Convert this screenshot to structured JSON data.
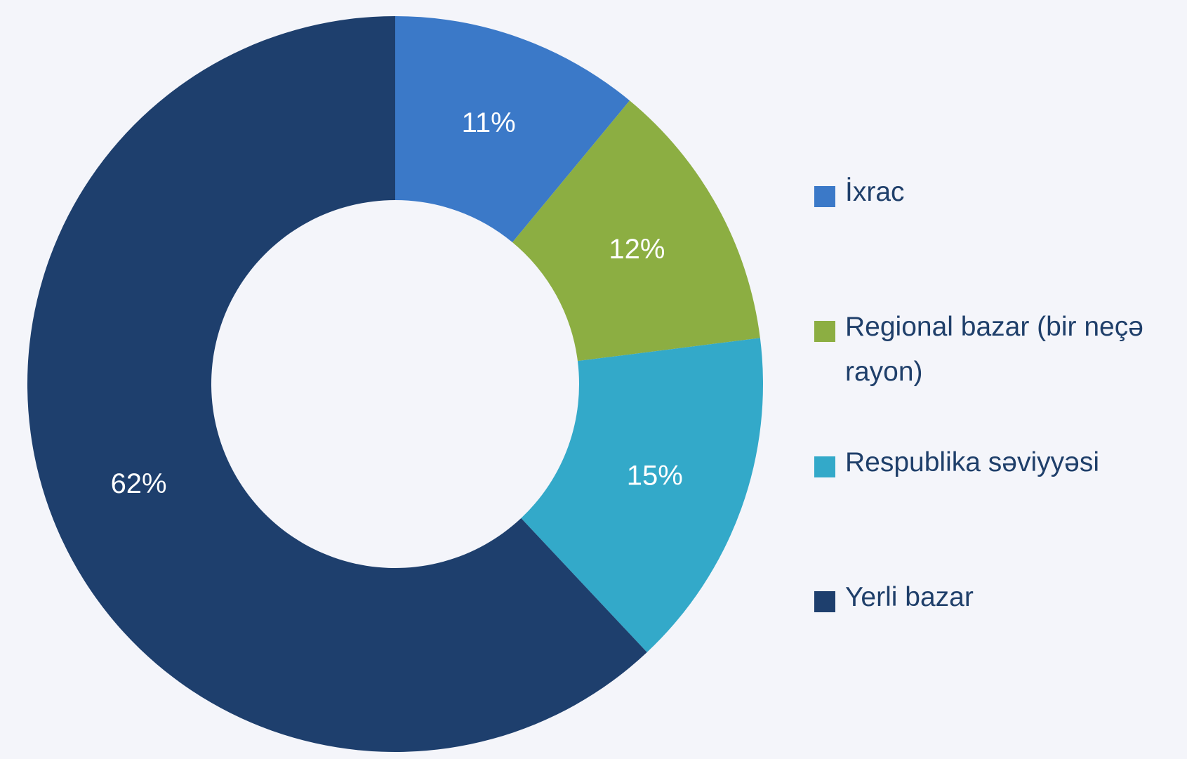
{
  "chart_data": {
    "type": "donut",
    "categories": [
      "İxrac",
      "Regional bazar (bir neçə rayon)",
      "Respublika səviyyəsi",
      "Yerli bazar"
    ],
    "values": [
      11,
      12,
      15,
      62
    ],
    "value_labels": [
      "11%",
      "12%",
      "15%",
      "62%"
    ],
    "colors": [
      "#3b79c8",
      "#8cae42",
      "#33a9c9",
      "#1e3f6d"
    ],
    "legend": "right"
  }
}
